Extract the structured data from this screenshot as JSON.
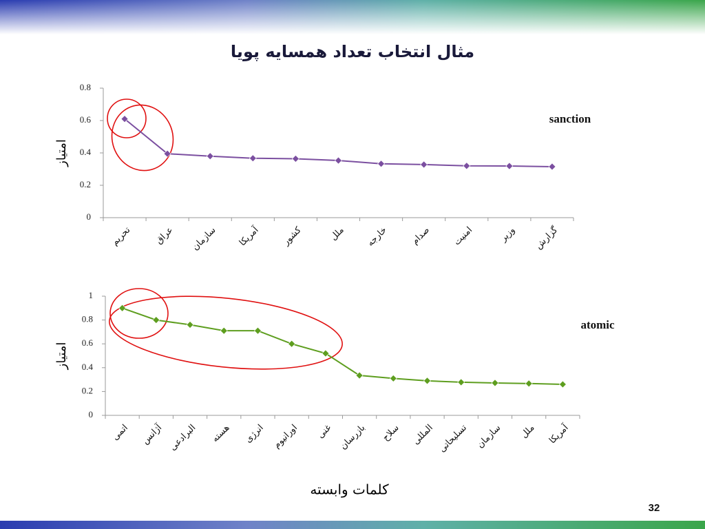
{
  "title": "مثال انتخاب تعداد همسایه پویا",
  "page_number": "32",
  "chart_data": [
    {
      "type": "line",
      "y_label": "امتیاز",
      "categories": [
        "تحریم",
        "عراق",
        "سازمان",
        "آمریکا",
        "کشور",
        "ملل",
        "خارجه",
        "صدام",
        "امنیت",
        "وزیر",
        "گزارش"
      ],
      "series": [
        {
          "name": "sanction",
          "color": "#7b4fa0",
          "values": [
            0.61,
            0.395,
            0.38,
            0.367,
            0.364,
            0.353,
            0.333,
            0.328,
            0.32,
            0.319,
            0.315
          ]
        }
      ],
      "ylim": [
        0,
        0.8
      ],
      "yticks": [
        0,
        0.2,
        0.4,
        0.6,
        0.8
      ]
    },
    {
      "type": "line",
      "y_label": "امتیاز",
      "x_label": "کلمات وابسته",
      "categories": [
        "اتمی",
        "آژانس",
        "البرادعی",
        "هسته",
        "انرژی",
        "اورانیوم",
        "غنی",
        "بازرسان",
        "سلاح",
        "المللی",
        "تسلیحاتی",
        "سازمان",
        "ملل",
        "آمریکا"
      ],
      "series": [
        {
          "name": "atomic",
          "color": "#5e9e1f",
          "values": [
            0.9,
            0.8,
            0.76,
            0.71,
            0.71,
            0.6,
            0.52,
            0.335,
            0.31,
            0.29,
            0.278,
            0.272,
            0.267,
            0.26
          ]
        }
      ],
      "ylim": [
        0,
        1
      ],
      "yticks": [
        0,
        0.2,
        0.4,
        0.6,
        0.8,
        1
      ]
    }
  ]
}
